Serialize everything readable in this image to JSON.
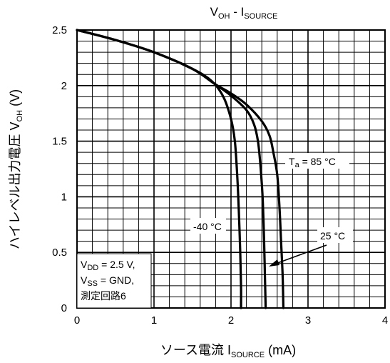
{
  "chart_data": {
    "type": "line",
    "title": {
      "main": "V",
      "main_sub": "OH",
      "sep": " - I",
      "tail_sub": "SOURCE"
    },
    "xlabel": {
      "text": "ソース電流  I",
      "sub": "SOURCE",
      "unit": "  (mA)"
    },
    "ylabel": {
      "text": "ハイレベル出力電圧  V",
      "sub": "OH",
      "unit": "  (V)"
    },
    "xlim": [
      0,
      4
    ],
    "ylim": [
      0,
      2.5
    ],
    "x_ticks": [
      "0",
      "1",
      "2",
      "3",
      "4"
    ],
    "y_ticks": [
      "0",
      "0.5",
      "1",
      "1.5",
      "2",
      "2.5"
    ],
    "grid": true,
    "minor_grid": {
      "x_step": 0.2,
      "y_step": 0.1
    },
    "series": [
      {
        "name": "-40 °C",
        "x": [
          0,
          0.5,
          1.0,
          1.5,
          1.75,
          1.9,
          2.0,
          2.05,
          2.08,
          2.1,
          2.12,
          2.13,
          2.13
        ],
        "y": [
          2.5,
          2.41,
          2.3,
          2.15,
          2.04,
          1.9,
          1.7,
          1.5,
          1.2,
          0.9,
          0.5,
          0.2,
          0
        ]
      },
      {
        "name": "25 °C",
        "x": [
          0,
          0.5,
          1.0,
          1.5,
          1.8,
          2.0,
          2.2,
          2.3,
          2.35,
          2.38,
          2.41,
          2.43,
          2.44,
          2.45
        ],
        "y": [
          2.5,
          2.41,
          2.3,
          2.15,
          2.01,
          1.91,
          1.78,
          1.65,
          1.5,
          1.3,
          1.0,
          0.6,
          0.3,
          0
        ]
      },
      {
        "name": "Ta = 85 °C",
        "x": [
          0,
          0.5,
          1.0,
          1.5,
          1.8,
          2.0,
          2.2,
          2.4,
          2.5,
          2.55,
          2.6,
          2.63,
          2.65,
          2.67,
          2.68
        ],
        "y": [
          2.5,
          2.41,
          2.3,
          2.15,
          2.01,
          1.93,
          1.83,
          1.68,
          1.55,
          1.4,
          1.2,
          0.9,
          0.6,
          0.3,
          0
        ]
      }
    ],
    "annotations": {
      "t85": {
        "pre": "T",
        "sub": "a",
        "post": " = 85 °C"
      },
      "t25": "25 °C",
      "tm40": "-40 °C"
    },
    "conditions": {
      "line1": {
        "pre": "V",
        "sub": "DD",
        "post": " = 2.5 V,"
      },
      "line2": {
        "pre": "V",
        "sub": "SS",
        "post": " = GND,"
      },
      "line3": "測定回路6"
    }
  }
}
